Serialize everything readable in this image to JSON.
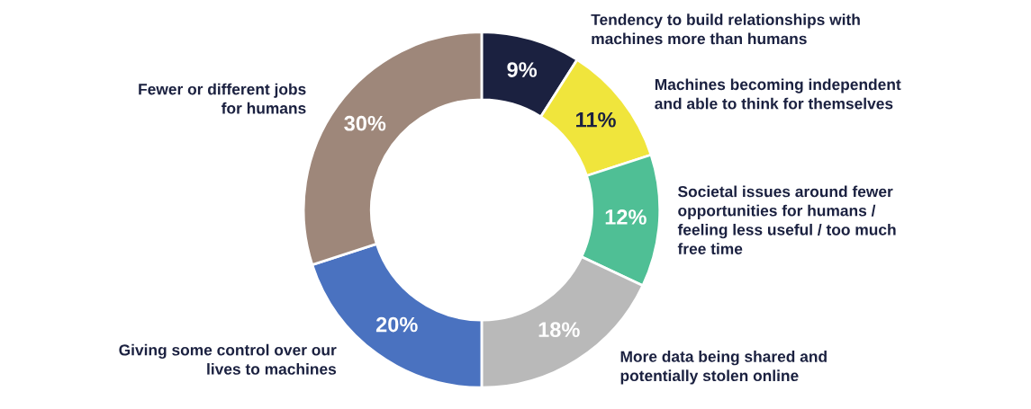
{
  "chart_data": {
    "type": "donut",
    "categories": [
      "Tendency to build relationships with\nmachines more than humans",
      "Machines becoming independent\nand able to think for themselves",
      "Societal issues around fewer\nopportunities for humans /\nfeeling less useful / too much\nfree time",
      "More data being shared and\npotentially stolen online",
      "Giving some control over our\nlives to machines",
      "Fewer or different jobs\nfor humans"
    ],
    "values": [
      9,
      11,
      12,
      18,
      20,
      30
    ],
    "value_labels": [
      "9%",
      "11%",
      "12%",
      "18%",
      "20%",
      "30%"
    ],
    "colors": [
      "#1b2140",
      "#f0e53c",
      "#4fbf95",
      "#b9b9b9",
      "#4a72c0",
      "#9e877a"
    ],
    "legend": false
  }
}
